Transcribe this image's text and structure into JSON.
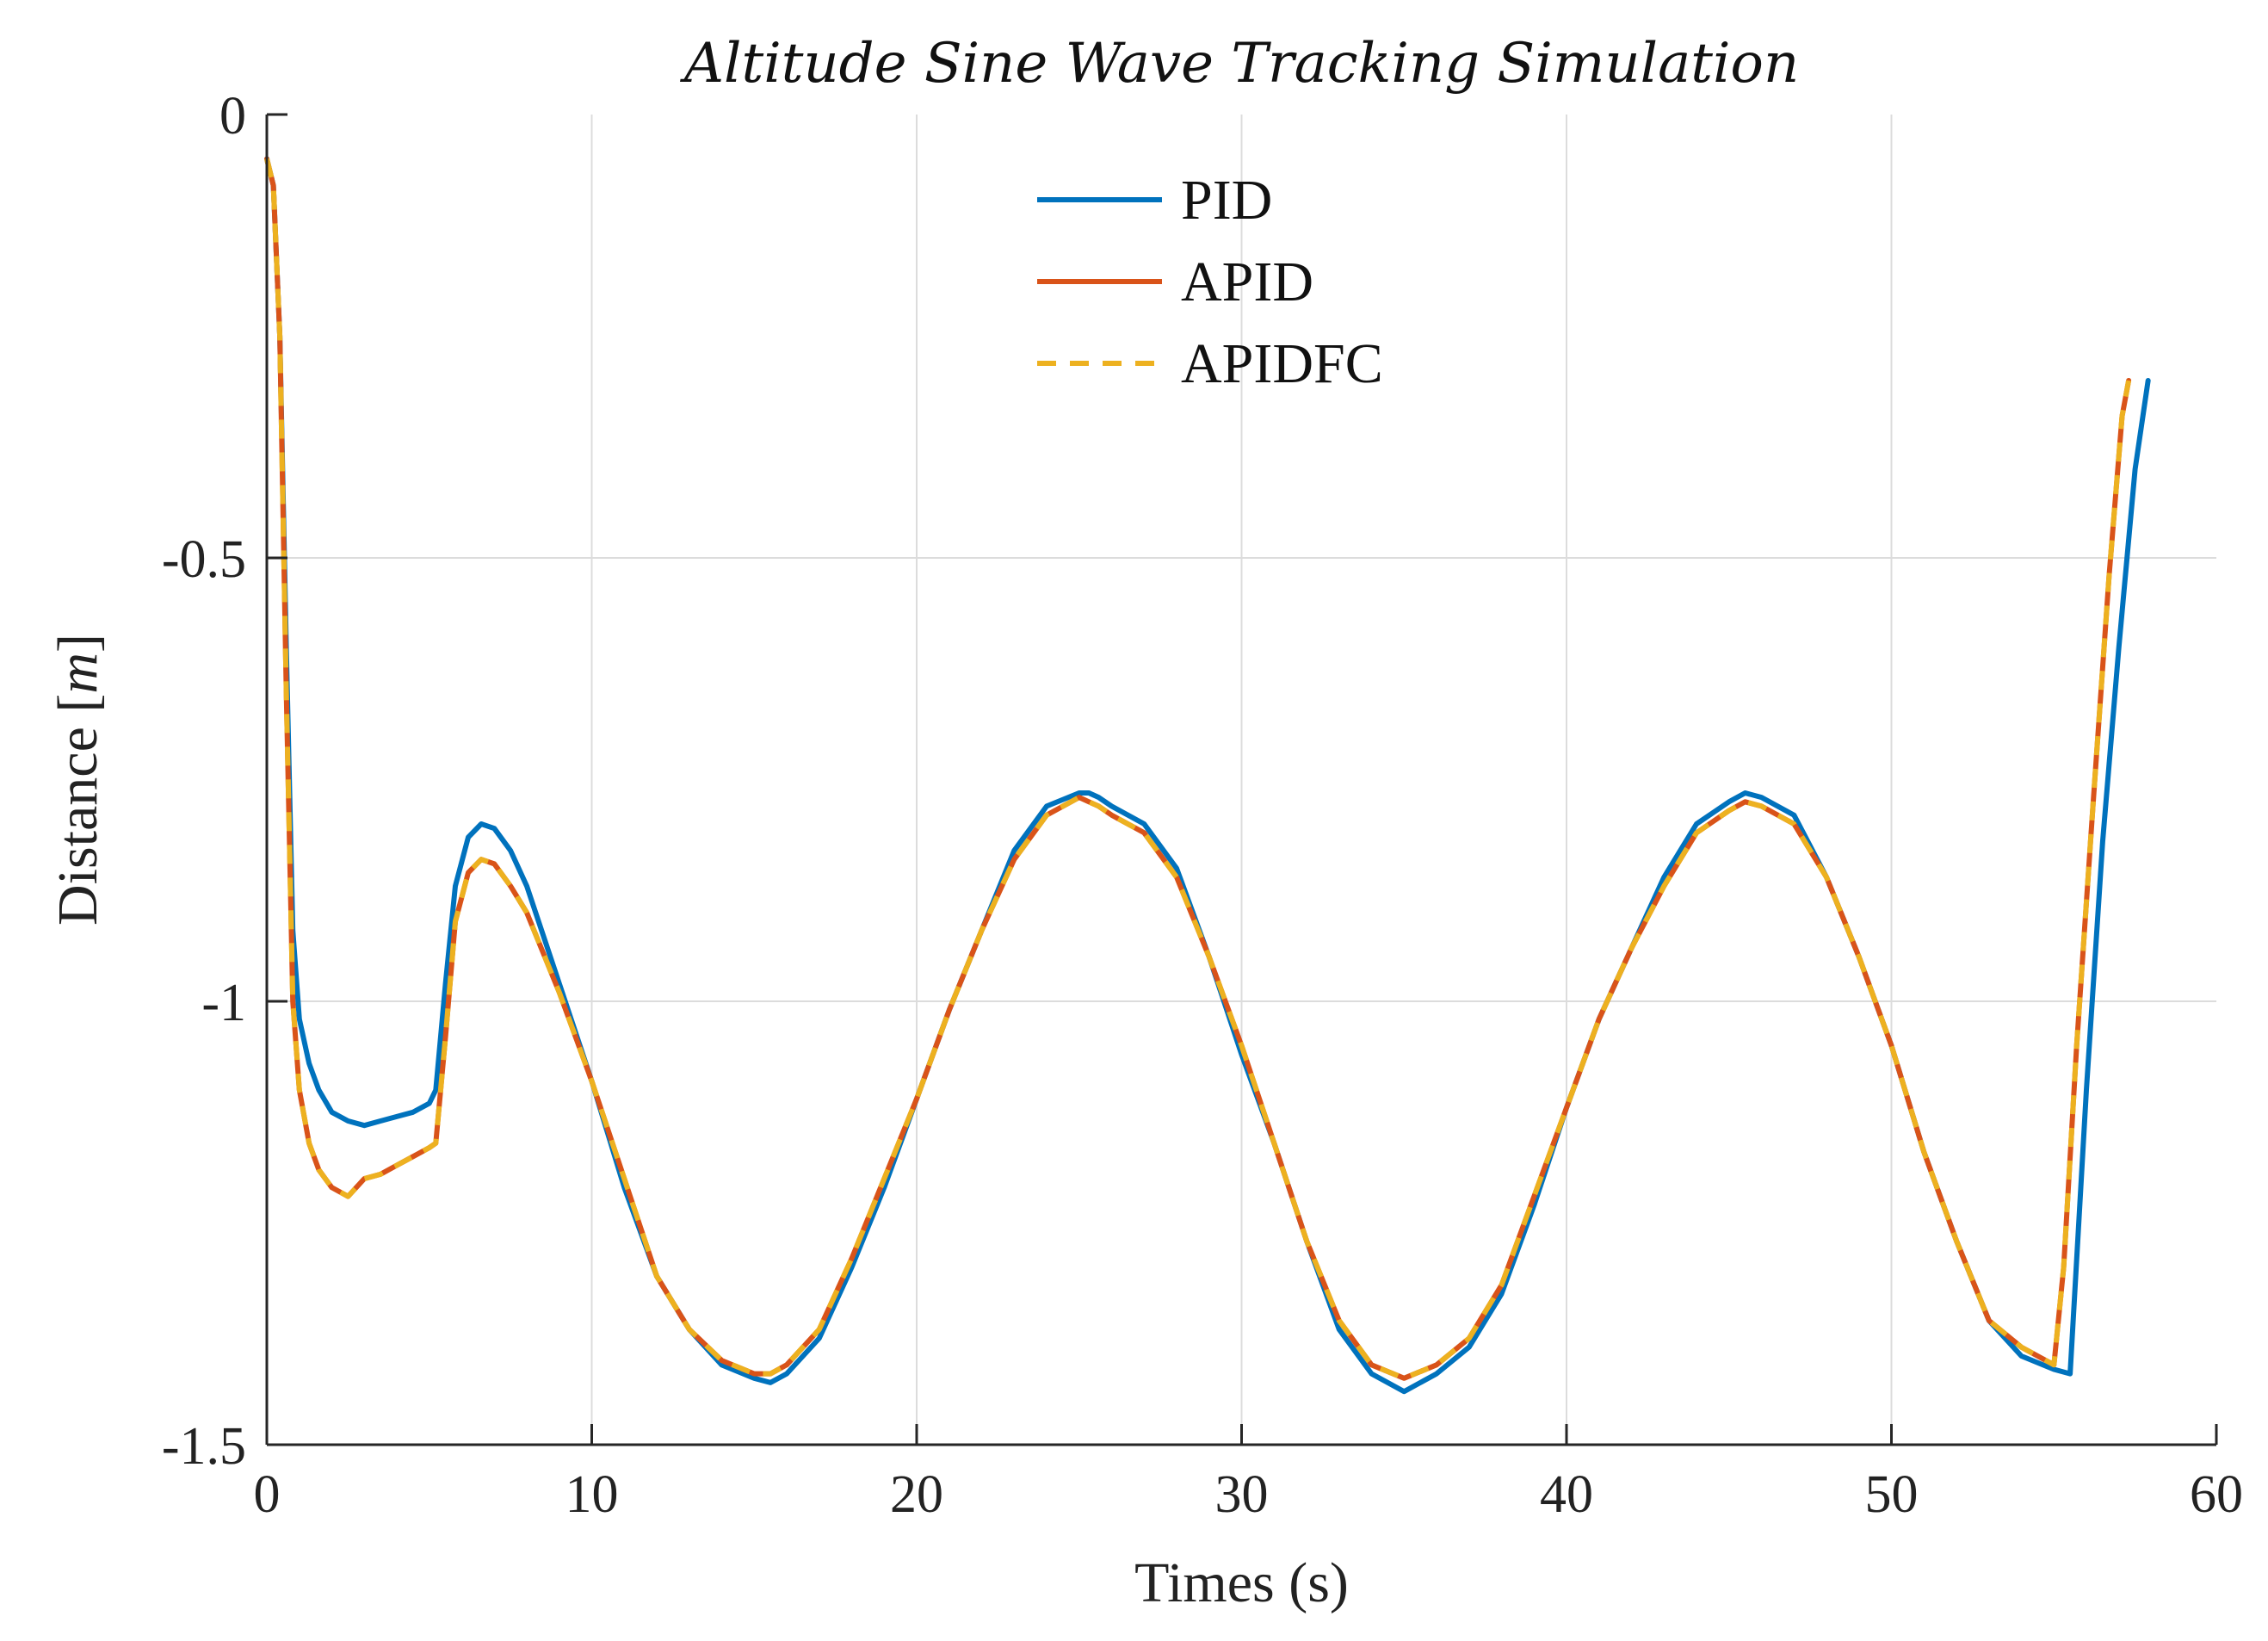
{
  "chart_data": {
    "type": "line",
    "title": "Altitude Sine Wave Tracking Simulation",
    "xlabel": "Times (s)",
    "ylabel_text": "Distance [",
    "ylabel_unit": "m",
    "ylabel_close": "]",
    "xlim": [
      0,
      60
    ],
    "ylim": [
      -1.5,
      0
    ],
    "xticks": [
      0,
      10,
      20,
      30,
      40,
      50,
      60
    ],
    "xtick_labels": [
      "0",
      "10",
      "20",
      "30",
      "40",
      "50",
      "60"
    ],
    "yticks": [
      0,
      -0.5,
      -1,
      -1.5
    ],
    "ytick_labels": [
      "0",
      "-0.5",
      "-1",
      "-1.5"
    ],
    "grid": true,
    "legend_position": "top-center",
    "series": [
      {
        "name": "PID",
        "color": "#0072BD",
        "dash": "solid",
        "x": [
          0,
          0.2,
          0.4,
          0.6,
          0.8,
          1.0,
          1.3,
          1.6,
          2.0,
          2.5,
          3.0,
          3.5,
          4.0,
          4.5,
          5.0,
          5.2,
          5.5,
          5.8,
          6.2,
          6.6,
          7.0,
          7.5,
          8.0,
          9.0,
          10.0,
          11.0,
          12.0,
          13.0,
          14.0,
          15.0,
          15.5,
          16.0,
          17.0,
          18.0,
          19.0,
          20.0,
          21.0,
          22.0,
          23.0,
          24.0,
          25.0,
          25.3,
          25.6,
          26.0,
          27.0,
          28.0,
          29.0,
          30.0,
          31.0,
          32.0,
          33.0,
          34.0,
          35.0,
          36.0,
          37.0,
          38.0,
          39.0,
          40.0,
          41.0,
          42.0,
          43.0,
          44.0,
          45.0,
          45.5,
          46.0,
          47.0,
          48.0,
          49.0,
          50.0,
          51.0,
          52.0,
          53.0,
          54.0,
          55.0,
          55.5,
          56.0,
          56.5,
          57.0,
          57.5,
          57.9
        ],
        "y": [
          -0.05,
          -0.08,
          -0.25,
          -0.6,
          -0.92,
          -1.02,
          -1.07,
          -1.1,
          -1.125,
          -1.135,
          -1.14,
          -1.135,
          -1.13,
          -1.125,
          -1.115,
          -1.1,
          -0.98,
          -0.87,
          -0.815,
          -0.8,
          -0.805,
          -0.83,
          -0.87,
          -0.98,
          -1.09,
          -1.21,
          -1.31,
          -1.37,
          -1.41,
          -1.425,
          -1.43,
          -1.42,
          -1.38,
          -1.3,
          -1.21,
          -1.11,
          -1.01,
          -0.92,
          -0.83,
          -0.78,
          -0.765,
          -0.765,
          -0.77,
          -0.78,
          -0.8,
          -0.85,
          -0.95,
          -1.06,
          -1.16,
          -1.27,
          -1.37,
          -1.42,
          -1.44,
          -1.42,
          -1.39,
          -1.33,
          -1.23,
          -1.12,
          -1.02,
          -0.94,
          -0.86,
          -0.8,
          -0.775,
          -0.765,
          -0.77,
          -0.79,
          -0.86,
          -0.95,
          -1.05,
          -1.17,
          -1.27,
          -1.36,
          -1.4,
          -1.415,
          -1.42,
          -1.1,
          -0.82,
          -0.6,
          -0.4,
          -0.3
        ]
      },
      {
        "name": "APID",
        "color": "#D95319",
        "dash": "solid",
        "x": [
          0,
          0.2,
          0.4,
          0.6,
          0.8,
          1.0,
          1.3,
          1.6,
          2.0,
          2.5,
          3.0,
          3.5,
          4.0,
          4.5,
          5.0,
          5.2,
          5.5,
          5.8,
          6.2,
          6.6,
          7.0,
          7.5,
          8.0,
          9.0,
          10.0,
          11.0,
          12.0,
          13.0,
          14.0,
          15.0,
          15.5,
          16.0,
          17.0,
          18.0,
          19.0,
          20.0,
          21.0,
          22.0,
          23.0,
          24.0,
          25.0,
          25.3,
          25.6,
          26.0,
          27.0,
          28.0,
          29.0,
          30.0,
          31.0,
          32.0,
          33.0,
          34.0,
          35.0,
          36.0,
          37.0,
          38.0,
          39.0,
          40.0,
          41.0,
          42.0,
          43.0,
          44.0,
          45.0,
          45.5,
          46.0,
          47.0,
          48.0,
          49.0,
          50.0,
          51.0,
          52.0,
          53.0,
          54.0,
          55.0,
          55.3,
          55.7,
          56.2,
          56.7,
          57.1,
          57.3
        ],
        "y": [
          -0.05,
          -0.08,
          -0.25,
          -0.65,
          -1.0,
          -1.1,
          -1.16,
          -1.19,
          -1.21,
          -1.22,
          -1.2,
          -1.195,
          -1.185,
          -1.175,
          -1.165,
          -1.16,
          -1.04,
          -0.91,
          -0.855,
          -0.84,
          -0.845,
          -0.87,
          -0.9,
          -0.99,
          -1.09,
          -1.2,
          -1.31,
          -1.37,
          -1.405,
          -1.42,
          -1.42,
          -1.41,
          -1.37,
          -1.29,
          -1.2,
          -1.11,
          -1.01,
          -0.92,
          -0.84,
          -0.79,
          -0.77,
          -0.775,
          -0.78,
          -0.79,
          -0.81,
          -0.86,
          -0.95,
          -1.05,
          -1.16,
          -1.27,
          -1.36,
          -1.41,
          -1.425,
          -1.41,
          -1.38,
          -1.32,
          -1.22,
          -1.12,
          -1.02,
          -0.94,
          -0.87,
          -0.81,
          -0.785,
          -0.775,
          -0.78,
          -0.8,
          -0.86,
          -0.95,
          -1.05,
          -1.17,
          -1.27,
          -1.36,
          -1.39,
          -1.41,
          -1.3,
          -1.05,
          -0.78,
          -0.52,
          -0.34,
          -0.3
        ]
      },
      {
        "name": "APIDFC",
        "color": "#EDB120",
        "dash": "dashed",
        "x": [
          0,
          0.2,
          0.4,
          0.6,
          0.8,
          1.0,
          1.3,
          1.6,
          2.0,
          2.5,
          3.0,
          3.5,
          4.0,
          4.5,
          5.0,
          5.2,
          5.5,
          5.8,
          6.2,
          6.6,
          7.0,
          7.5,
          8.0,
          9.0,
          10.0,
          11.0,
          12.0,
          13.0,
          14.0,
          15.0,
          15.5,
          16.0,
          17.0,
          18.0,
          19.0,
          20.0,
          21.0,
          22.0,
          23.0,
          24.0,
          25.0,
          25.3,
          25.6,
          26.0,
          27.0,
          28.0,
          29.0,
          30.0,
          31.0,
          32.0,
          33.0,
          34.0,
          35.0,
          36.0,
          37.0,
          38.0,
          39.0,
          40.0,
          41.0,
          42.0,
          43.0,
          44.0,
          45.0,
          45.5,
          46.0,
          47.0,
          48.0,
          49.0,
          50.0,
          51.0,
          52.0,
          53.0,
          54.0,
          55.0,
          55.3,
          55.7,
          56.2,
          56.7,
          57.1,
          57.3
        ],
        "y": [
          -0.05,
          -0.08,
          -0.25,
          -0.65,
          -1.0,
          -1.1,
          -1.16,
          -1.19,
          -1.21,
          -1.22,
          -1.2,
          -1.195,
          -1.185,
          -1.175,
          -1.165,
          -1.16,
          -1.04,
          -0.91,
          -0.855,
          -0.84,
          -0.845,
          -0.87,
          -0.9,
          -0.99,
          -1.09,
          -1.2,
          -1.31,
          -1.37,
          -1.405,
          -1.42,
          -1.42,
          -1.41,
          -1.37,
          -1.29,
          -1.2,
          -1.11,
          -1.01,
          -0.92,
          -0.84,
          -0.79,
          -0.77,
          -0.775,
          -0.78,
          -0.79,
          -0.81,
          -0.86,
          -0.95,
          -1.05,
          -1.16,
          -1.27,
          -1.36,
          -1.41,
          -1.425,
          -1.41,
          -1.38,
          -1.32,
          -1.22,
          -1.12,
          -1.02,
          -0.94,
          -0.87,
          -0.81,
          -0.785,
          -0.775,
          -0.78,
          -0.8,
          -0.86,
          -0.95,
          -1.05,
          -1.17,
          -1.27,
          -1.36,
          -1.39,
          -1.41,
          -1.3,
          -1.05,
          -0.78,
          -0.52,
          -0.34,
          -0.3
        ]
      }
    ]
  }
}
